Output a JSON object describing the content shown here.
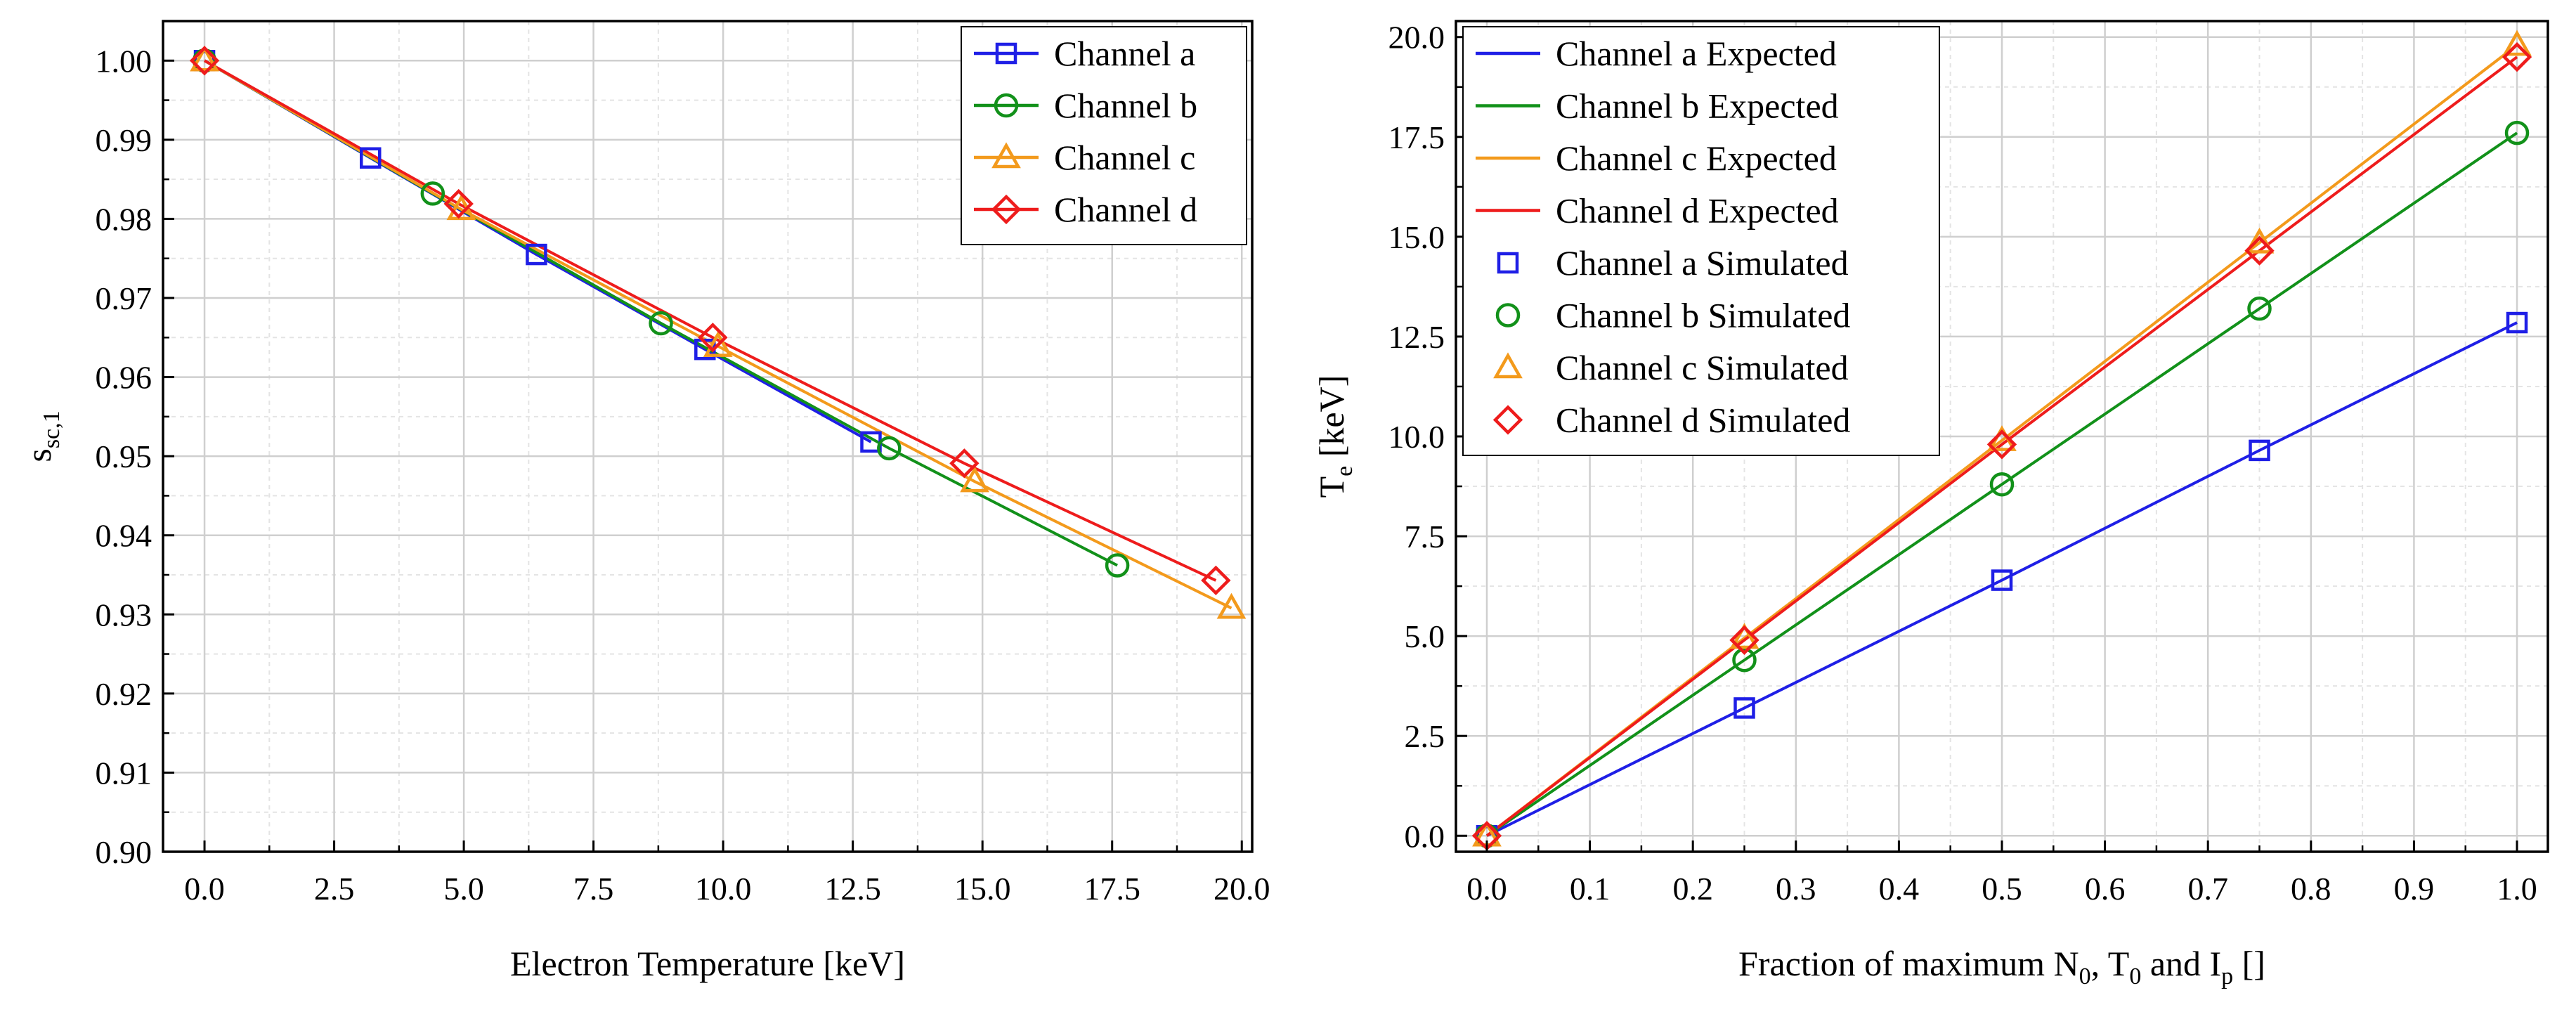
{
  "chart_data": [
    {
      "type": "line",
      "title": "",
      "xlabel": "Electron Temperature [keV]",
      "ylabel": {
        "main": "s",
        "sub": "sc,1"
      },
      "xlim": [
        -0.8,
        20.2
      ],
      "ylim": [
        0.9,
        1.005
      ],
      "xticks": [
        "0.0",
        "2.5",
        "5.0",
        "7.5",
        "10.0",
        "12.5",
        "15.0",
        "17.5",
        "20.0"
      ],
      "yticks": [
        "0.90",
        "0.91",
        "0.92",
        "0.93",
        "0.94",
        "0.95",
        "0.96",
        "0.97",
        "0.98",
        "0.99",
        "1.00"
      ],
      "grid": true,
      "legend_position": "top-right",
      "series": [
        {
          "name": "Channel a",
          "color": "#1f1fe6",
          "marker": "square",
          "x": [
            0,
            3.2,
            6.4,
            9.65,
            12.85
          ],
          "y": [
            1.0,
            0.9877,
            0.9755,
            0.9635,
            0.9518
          ]
        },
        {
          "name": "Channel b",
          "color": "#12911a",
          "marker": "circle",
          "x": [
            0,
            4.4,
            8.8,
            13.2,
            17.6
          ],
          "y": [
            1.0,
            0.9832,
            0.9668,
            0.951,
            0.9362
          ]
        },
        {
          "name": "Channel c",
          "color": "#f39a1c",
          "marker": "triangle",
          "x": [
            0,
            4.95,
            9.9,
            14.85,
            19.8
          ],
          "y": [
            1.0,
            0.9812,
            0.9639,
            0.9468,
            0.9308
          ]
        },
        {
          "name": "Channel d",
          "color": "#ee1c1c",
          "marker": "diamond",
          "x": [
            0,
            4.9,
            9.8,
            14.65,
            19.5
          ],
          "y": [
            1.0,
            0.9819,
            0.965,
            0.9491,
            0.9343
          ]
        }
      ]
    },
    {
      "type": "line",
      "title": "",
      "xlabel": {
        "parts": [
          "Fraction of maximum N",
          "0",
          ", T",
          "0",
          " and I",
          "p",
          " []"
        ]
      },
      "ylabel": {
        "main": "T",
        "sub": "e",
        "rest": " [keV]"
      },
      "xlim": [
        -0.03,
        1.03
      ],
      "ylim": [
        -0.4,
        20.4
      ],
      "xticks": [
        "0.0",
        "0.1",
        "0.2",
        "0.3",
        "0.4",
        "0.5",
        "0.6",
        "0.7",
        "0.8",
        "0.9",
        "1.0"
      ],
      "yticks": [
        "0.0",
        "2.5",
        "5.0",
        "7.5",
        "10.0",
        "12.5",
        "15.0",
        "17.5",
        "20.0"
      ],
      "grid": true,
      "legend_position": "top-left",
      "series": [
        {
          "name": "Channel a Expected",
          "color": "#1f1fe6",
          "style": "line",
          "x": [
            0,
            0.25,
            0.5,
            0.75,
            1.0
          ],
          "y": [
            0,
            3.2,
            6.4,
            9.65,
            12.85
          ]
        },
        {
          "name": "Channel b Expected",
          "color": "#12911a",
          "style": "line",
          "x": [
            0,
            0.25,
            0.5,
            0.75,
            1.0
          ],
          "y": [
            0,
            4.4,
            8.8,
            13.2,
            17.6
          ]
        },
        {
          "name": "Channel c Expected",
          "color": "#f39a1c",
          "style": "line",
          "x": [
            0,
            0.25,
            0.5,
            0.75,
            1.0
          ],
          "y": [
            0,
            4.95,
            9.9,
            14.85,
            19.8
          ]
        },
        {
          "name": "Channel d Expected",
          "color": "#ee1c1c",
          "style": "line",
          "x": [
            0,
            0.25,
            0.5,
            0.75,
            1.0
          ],
          "y": [
            0,
            4.9,
            9.8,
            14.65,
            19.5
          ]
        },
        {
          "name": "Channel a Simulated",
          "color": "#1f1fe6",
          "style": "marker",
          "marker": "square",
          "x": [
            0,
            0.25,
            0.5,
            0.75,
            1.0
          ],
          "y": [
            0,
            3.2,
            6.4,
            9.65,
            12.85
          ]
        },
        {
          "name": "Channel b Simulated",
          "color": "#12911a",
          "style": "marker",
          "marker": "circle",
          "x": [
            0,
            0.25,
            0.5,
            0.75,
            1.0
          ],
          "y": [
            0,
            4.4,
            8.8,
            13.2,
            17.6
          ]
        },
        {
          "name": "Channel c Simulated",
          "color": "#f39a1c",
          "style": "marker",
          "marker": "triangle",
          "x": [
            0,
            0.25,
            0.5,
            0.75,
            1.0
          ],
          "y": [
            0,
            4.95,
            9.9,
            14.85,
            19.8
          ]
        },
        {
          "name": "Channel d Simulated",
          "color": "#ee1c1c",
          "style": "marker",
          "marker": "diamond",
          "x": [
            0,
            0.25,
            0.5,
            0.75,
            1.0
          ],
          "y": [
            0,
            4.9,
            9.8,
            14.65,
            19.5
          ]
        }
      ]
    }
  ]
}
